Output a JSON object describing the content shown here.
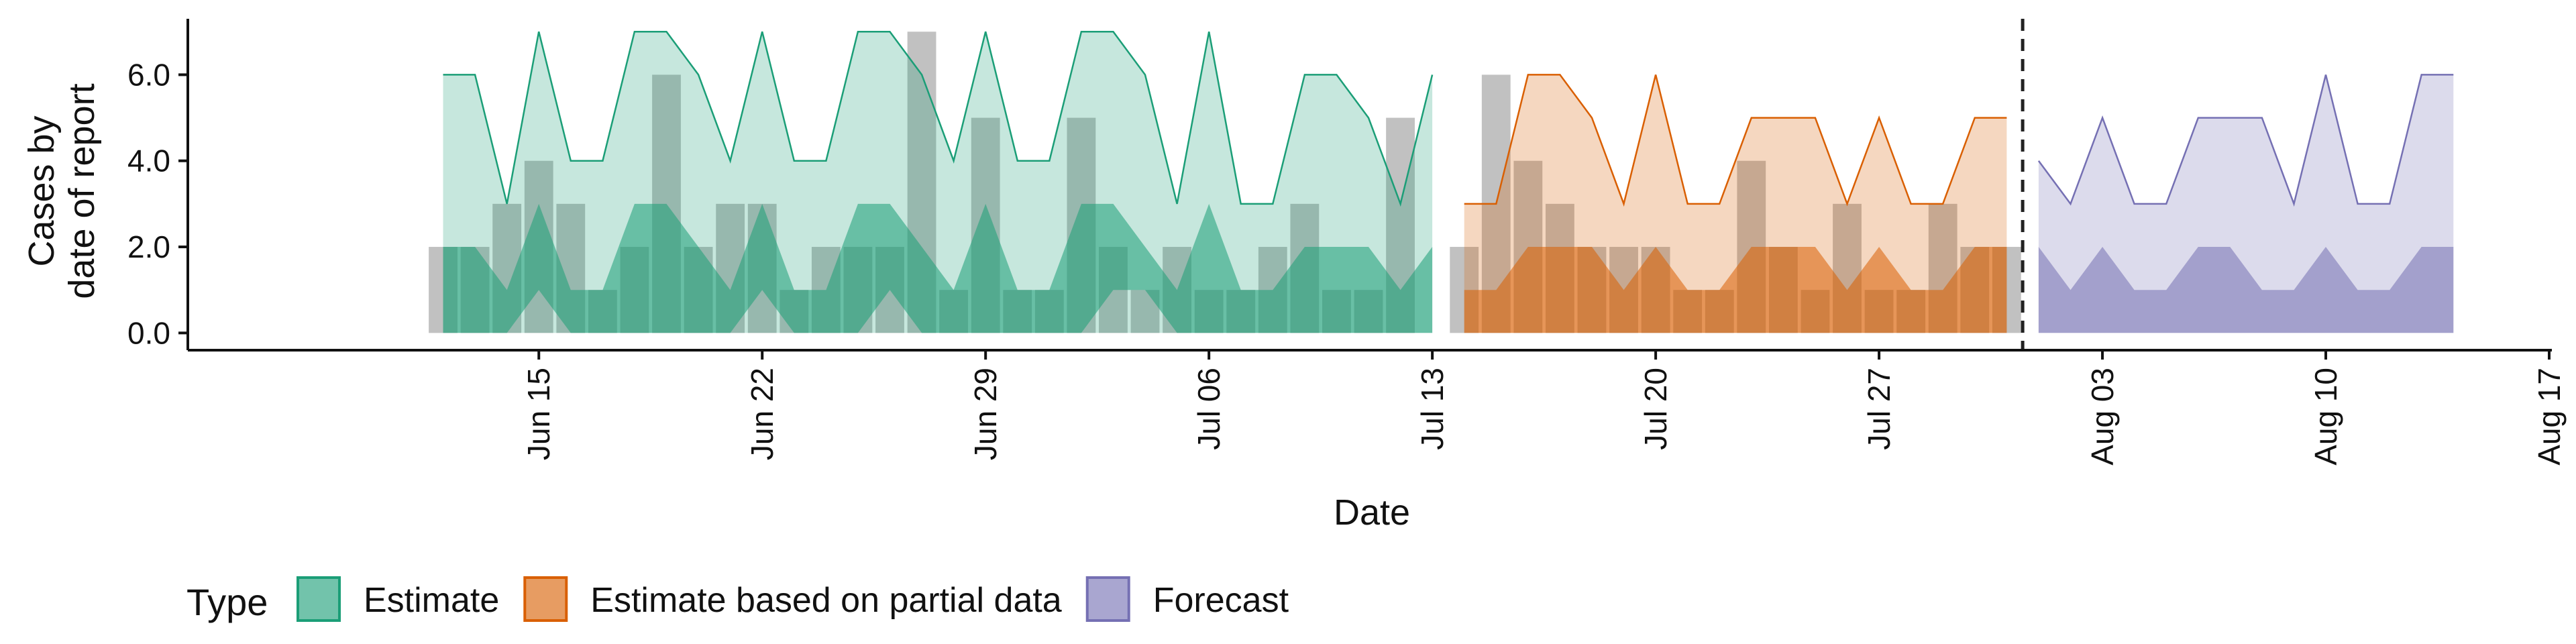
{
  "chart_data": {
    "type": "area",
    "xlabel": "Date",
    "ylabel": [
      "Cases by",
      "date of report"
    ],
    "ylim": [
      -0.4,
      7.3
    ],
    "yticks": [
      0,
      2,
      4,
      6
    ],
    "ytick_labels": [
      "0.0",
      "2.0",
      "4.0",
      "6.0"
    ],
    "xlim": [
      "2020-06-04",
      "2020-08-17"
    ],
    "xticks": [
      "2020-06-15",
      "2020-06-22",
      "2020-06-29",
      "2020-07-06",
      "2020-07-13",
      "2020-07-20",
      "2020-07-27",
      "2020-08-03",
      "2020-08-10",
      "2020-08-17"
    ],
    "xtick_labels": [
      "Jun 15",
      "Jun 22",
      "Jun 29",
      "Jul 06",
      "Jul 13",
      "Jul 20",
      "Jul 27",
      "Aug 03",
      "Aug 10",
      "Aug 17"
    ],
    "grid": false,
    "legend_position": "bottom-left",
    "legend_title": "Type",
    "forecast_date": "2020-07-31",
    "reported_cases": {
      "dates": [
        "2020-06-12",
        "2020-06-13",
        "2020-06-14",
        "2020-06-15",
        "2020-06-16",
        "2020-06-17",
        "2020-06-18",
        "2020-06-19",
        "2020-06-20",
        "2020-06-21",
        "2020-06-22",
        "2020-06-23",
        "2020-06-24",
        "2020-06-25",
        "2020-06-26",
        "2020-06-27",
        "2020-06-28",
        "2020-06-29",
        "2020-06-30",
        "2020-07-01",
        "2020-07-02",
        "2020-07-03",
        "2020-07-04",
        "2020-07-05",
        "2020-07-06",
        "2020-07-07",
        "2020-07-08",
        "2020-07-09",
        "2020-07-10",
        "2020-07-11",
        "2020-07-12",
        "2020-07-13",
        "2020-07-14",
        "2020-07-15",
        "2020-07-16",
        "2020-07-17",
        "2020-07-18",
        "2020-07-19",
        "2020-07-20",
        "2020-07-21",
        "2020-07-22",
        "2020-07-23",
        "2020-07-24",
        "2020-07-25",
        "2020-07-26",
        "2020-07-27",
        "2020-07-28",
        "2020-07-29",
        "2020-07-30",
        "2020-07-31"
      ],
      "values": [
        2,
        2,
        3,
        4,
        3,
        1,
        2,
        6,
        2,
        3,
        3,
        1,
        2,
        2,
        2,
        7,
        1,
        5,
        1,
        1,
        5,
        2,
        1,
        2,
        1,
        1,
        2,
        3,
        1,
        1,
        5,
        0,
        2,
        6,
        4,
        3,
        2,
        2,
        2,
        1,
        1,
        4,
        2,
        1,
        3,
        1,
        1,
        3,
        2,
        2
      ]
    },
    "series": [
      {
        "name": "Estimate",
        "color": "#1b9e77",
        "dates": [
          "2020-06-12",
          "2020-06-13",
          "2020-06-14",
          "2020-06-15",
          "2020-06-16",
          "2020-06-17",
          "2020-06-18",
          "2020-06-19",
          "2020-06-20",
          "2020-06-21",
          "2020-06-22",
          "2020-06-23",
          "2020-06-24",
          "2020-06-25",
          "2020-06-26",
          "2020-06-27",
          "2020-06-28",
          "2020-06-29",
          "2020-06-30",
          "2020-07-01",
          "2020-07-02",
          "2020-07-03",
          "2020-07-04",
          "2020-07-05",
          "2020-07-06",
          "2020-07-07",
          "2020-07-08",
          "2020-07-09",
          "2020-07-10",
          "2020-07-11",
          "2020-07-12",
          "2020-07-13"
        ],
        "lower": [
          0,
          0,
          0,
          0,
          0,
          0,
          0,
          0,
          0,
          0,
          0,
          0,
          0,
          0,
          0,
          0,
          0,
          0,
          0,
          0,
          0,
          0,
          0,
          0,
          0,
          0,
          0,
          0,
          0,
          0,
          0,
          0
        ],
        "lower_mid": [
          0,
          0,
          0,
          1,
          0,
          0,
          0,
          0,
          0,
          0,
          1,
          0,
          0,
          0,
          1,
          0,
          0,
          0,
          0,
          0,
          0,
          1,
          1,
          0,
          0,
          0,
          0,
          0,
          0,
          0,
          0,
          0
        ],
        "upper_mid": [
          2,
          2,
          1,
          3,
          1,
          1,
          3,
          3,
          2,
          1,
          3,
          1,
          1,
          3,
          3,
          2,
          1,
          3,
          1,
          1,
          3,
          3,
          2,
          1,
          3,
          1,
          1,
          2,
          2,
          2,
          1,
          2
        ],
        "upper": [
          6,
          6,
          3,
          7,
          4,
          4,
          7,
          7,
          6,
          4,
          7,
          4,
          4,
          7,
          7,
          6,
          4,
          7,
          4,
          4,
          7,
          7,
          6,
          3,
          7,
          3,
          3,
          6,
          6,
          5,
          3,
          6
        ]
      },
      {
        "name": "Estimate based on partial data",
        "color": "#d95f02",
        "dates": [
          "2020-07-14",
          "2020-07-15",
          "2020-07-16",
          "2020-07-17",
          "2020-07-18",
          "2020-07-19",
          "2020-07-20",
          "2020-07-21",
          "2020-07-22",
          "2020-07-23",
          "2020-07-24",
          "2020-07-25",
          "2020-07-26",
          "2020-07-27",
          "2020-07-28",
          "2020-07-29",
          "2020-07-30",
          "2020-07-31"
        ],
        "lower": [
          0,
          0,
          0,
          0,
          0,
          0,
          0,
          0,
          0,
          0,
          0,
          0,
          0,
          0,
          0,
          0,
          0,
          0
        ],
        "upper_mid": [
          1,
          1,
          2,
          2,
          2,
          1,
          2,
          1,
          1,
          2,
          2,
          2,
          1,
          2,
          1,
          1,
          2,
          2
        ],
        "upper": [
          3,
          3,
          6,
          6,
          5,
          3,
          6,
          3,
          3,
          5,
          5,
          5,
          3,
          5,
          3,
          3,
          5,
          5
        ]
      },
      {
        "name": "Forecast",
        "color": "#7570b3",
        "dates": [
          "2020-08-01",
          "2020-08-02",
          "2020-08-03",
          "2020-08-04",
          "2020-08-05",
          "2020-08-06",
          "2020-08-07",
          "2020-08-08",
          "2020-08-09",
          "2020-08-10",
          "2020-08-11",
          "2020-08-12",
          "2020-08-13",
          "2020-08-14"
        ],
        "lower": [
          0,
          0,
          0,
          0,
          0,
          0,
          0,
          0,
          0,
          0,
          0,
          0,
          0,
          0
        ],
        "upper_mid": [
          2,
          1,
          2,
          1,
          1,
          2,
          2,
          1,
          1,
          2,
          1,
          1,
          2,
          2
        ],
        "upper": [
          4,
          3,
          5,
          3,
          3,
          5,
          5,
          5,
          3,
          6,
          3,
          3,
          6,
          6
        ]
      }
    ]
  }
}
